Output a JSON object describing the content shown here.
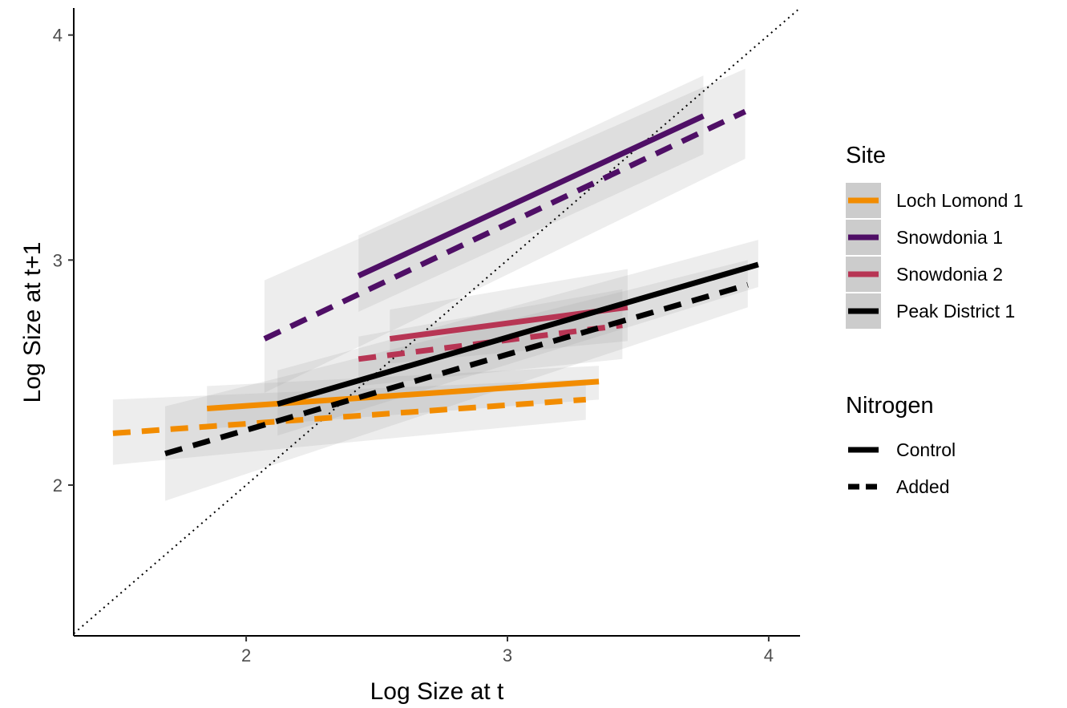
{
  "chart_data": {
    "type": "line",
    "xlabel": "Log Size at t",
    "ylabel": "Log Size at t+1",
    "xlim": [
      1.34,
      4.12
    ],
    "ylim": [
      1.33,
      4.12
    ],
    "x_ticks": [
      2,
      3,
      4
    ],
    "y_ticks": [
      2,
      3,
      4
    ],
    "grid": false,
    "reference_line": {
      "type": "identity",
      "style": "dotted"
    },
    "legend_placement": "right",
    "site_legend": {
      "title": "Site",
      "entries": [
        {
          "label": "Loch Lomond 1",
          "color": "#f28c00"
        },
        {
          "label": "Snowdonia 1",
          "color": "#4f0f66"
        },
        {
          "label": "Snowdonia 2",
          "color": "#b73554"
        },
        {
          "label": "Peak District 1",
          "color": "#000000"
        }
      ]
    },
    "nitrogen_legend": {
      "title": "Nitrogen",
      "entries": [
        {
          "label": "Control",
          "linetype": "solid"
        },
        {
          "label": "Added",
          "linetype": "dashed"
        }
      ]
    },
    "series": [
      {
        "site": "Loch Lomond 1",
        "nitrogen": "Control",
        "color": "#f28c00",
        "x": [
          1.85,
          3.35
        ],
        "y": [
          2.34,
          2.46
        ],
        "ci_upper": [
          2.44,
          2.53
        ],
        "ci_lower": [
          2.25,
          2.38
        ]
      },
      {
        "site": "Loch Lomond 1",
        "nitrogen": "Added",
        "color": "#f28c00",
        "x": [
          1.49,
          3.3
        ],
        "y": [
          2.23,
          2.38
        ],
        "ci_upper": [
          2.38,
          2.47
        ],
        "ci_lower": [
          2.09,
          2.29
        ]
      },
      {
        "site": "Snowdonia 1",
        "nitrogen": "Control",
        "color": "#4f0f66",
        "x": [
          2.43,
          3.75
        ],
        "y": [
          2.93,
          3.64
        ],
        "ci_upper": [
          3.11,
          3.82
        ],
        "ci_lower": [
          2.77,
          3.47
        ]
      },
      {
        "site": "Snowdonia 1",
        "nitrogen": "Added",
        "color": "#4f0f66",
        "x": [
          2.07,
          3.91
        ],
        "y": [
          2.65,
          3.66
        ],
        "ci_upper": [
          2.91,
          3.85
        ],
        "ci_lower": [
          2.41,
          3.45
        ]
      },
      {
        "site": "Snowdonia 2",
        "nitrogen": "Control",
        "color": "#b73554",
        "x": [
          2.55,
          3.46
        ],
        "y": [
          2.65,
          2.79
        ],
        "ci_upper": [
          2.78,
          2.96
        ],
        "ci_lower": [
          2.54,
          2.64
        ]
      },
      {
        "site": "Snowdonia 2",
        "nitrogen": "Added",
        "color": "#b73554",
        "x": [
          2.43,
          3.44
        ],
        "y": [
          2.56,
          2.71
        ],
        "ci_upper": [
          2.66,
          2.87
        ],
        "ci_lower": [
          2.44,
          2.56
        ]
      },
      {
        "site": "Peak District 1",
        "nitrogen": "Control",
        "color": "#000000",
        "x": [
          2.12,
          3.96
        ],
        "y": [
          2.36,
          2.98
        ],
        "ci_upper": [
          2.51,
          3.09
        ],
        "ci_lower": [
          2.22,
          2.88
        ]
      },
      {
        "site": "Peak District 1",
        "nitrogen": "Added",
        "color": "#000000",
        "x": [
          1.69,
          3.92
        ],
        "y": [
          2.14,
          2.89
        ],
        "ci_upper": [
          2.35,
          3.0
        ],
        "ci_lower": [
          1.93,
          2.79
        ]
      }
    ]
  }
}
